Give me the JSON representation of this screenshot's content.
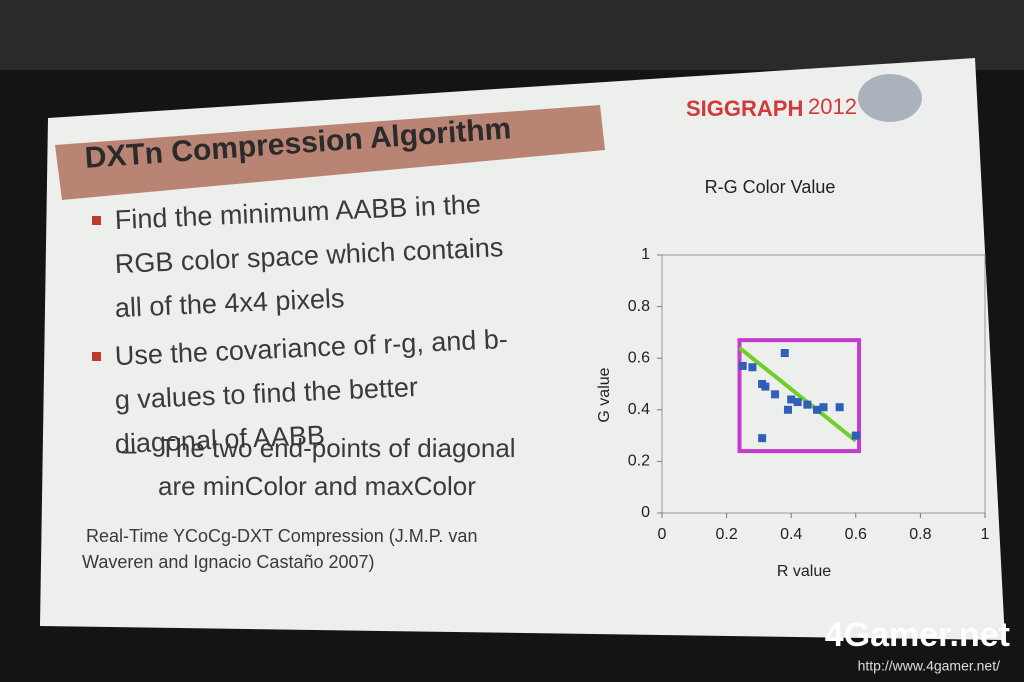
{
  "header": {
    "title": "DXTn Compression Algorithm",
    "logo": "SIGGRAPH",
    "logo_year": "2012"
  },
  "bullets": [
    [
      "Find the minimum AABB in the",
      "RGB color space which contains",
      "all of the 4x4 pixels"
    ],
    [
      "Use the covariance of r-g, and b-",
      "g values to find the better",
      "diagonal of AABB"
    ]
  ],
  "sub_bullet": [
    "The two end-points of diagonal",
    "are minColor and maxColor"
  ],
  "citation": [
    "Real-Time YCoCg-DXT Compression (J.M.P. van",
    "Waveren and Ignacio Castaño 2007)"
  ],
  "watermark": {
    "brand": "4Gamer.net",
    "url": "http://www.4gamer.net/"
  },
  "chart_data": {
    "type": "scatter",
    "title": "R-G Color Value",
    "xlabel": "R value",
    "ylabel": "G value",
    "x": [
      0.25,
      0.28,
      0.31,
      0.32,
      0.35,
      0.38,
      0.39,
      0.4,
      0.42,
      0.45,
      0.48,
      0.5,
      0.55,
      0.6,
      0.31
    ],
    "y": [
      0.57,
      0.565,
      0.5,
      0.49,
      0.46,
      0.62,
      0.4,
      0.44,
      0.43,
      0.42,
      0.4,
      0.41,
      0.41,
      0.3,
      0.29
    ],
    "color": "#2f5fb8",
    "xlim": [
      0,
      1
    ],
    "ylim": [
      0,
      1
    ],
    "xticks": [
      0,
      0.2,
      0.4,
      0.6,
      0.8,
      1
    ],
    "yticks": [
      0,
      0.2,
      0.4,
      0.6,
      0.8,
      1
    ],
    "overlays": [
      {
        "type": "rect",
        "x": [
          0.24,
          0.61
        ],
        "y": [
          0.24,
          0.67
        ],
        "color": "#c43ccf"
      },
      {
        "type": "line",
        "x": [
          0.24,
          0.6
        ],
        "y": [
          0.64,
          0.28
        ],
        "color": "#6fcf2a"
      }
    ]
  }
}
